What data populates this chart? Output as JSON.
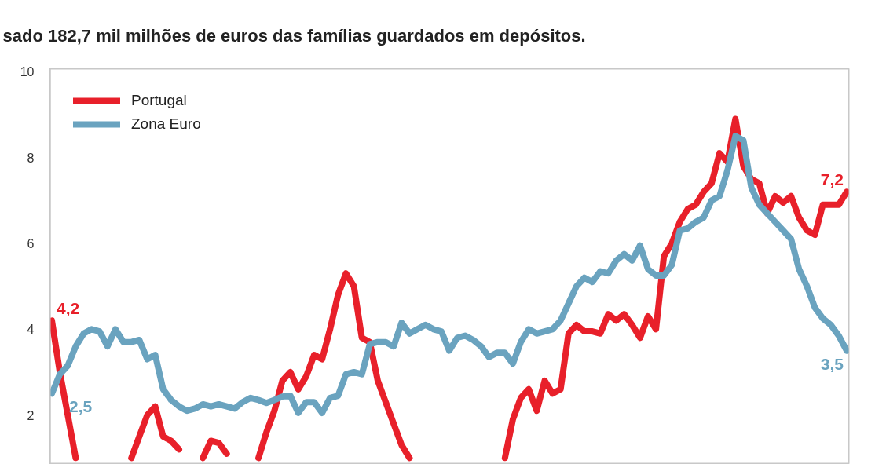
{
  "chart_data": {
    "type": "line",
    "subtitle": "sado 182,7 mil milhões de euros das famílias guardados em depósitos.",
    "categories": [
      null,
      null,
      null,
      null,
      null,
      null,
      null,
      null,
      null,
      null,
      null,
      null,
      null,
      null,
      null,
      null,
      null,
      null,
      null,
      null,
      null,
      null,
      null,
      null,
      null,
      null,
      null,
      null,
      null,
      null,
      null,
      null,
      null,
      null,
      null,
      null,
      null,
      null,
      null,
      null,
      null,
      null,
      null,
      null,
      null,
      null,
      null,
      null,
      null,
      null,
      null,
      null,
      null,
      null,
      null,
      null,
      null,
      null,
      null,
      null,
      null,
      null,
      null,
      null,
      null,
      null,
      null,
      null,
      null,
      null,
      null,
      null,
      null,
      null,
      null,
      null,
      null,
      null,
      null,
      null,
      null,
      null,
      null,
      null,
      null,
      null,
      null,
      null,
      null,
      null,
      null,
      null,
      null,
      null,
      null,
      null,
      null,
      null,
      null,
      null,
      null
    ],
    "series": [
      {
        "name": "Portugal",
        "color": "#e8202a",
        "values": [
          4.2,
          3.0,
          2.0,
          1.0,
          null,
          null,
          null,
          null,
          null,
          null,
          1.0,
          1.5,
          2.0,
          2.2,
          1.5,
          1.4,
          1.2,
          null,
          null,
          1.0,
          1.4,
          1.35,
          1.1,
          null,
          null,
          null,
          1.0,
          1.6,
          2.1,
          2.8,
          3.0,
          2.6,
          2.9,
          3.4,
          3.3,
          4.0,
          4.8,
          5.3,
          5.0,
          3.8,
          3.7,
          2.8,
          2.3,
          1.8,
          1.3,
          1.0,
          null,
          null,
          null,
          null,
          null,
          null,
          null,
          null,
          null,
          null,
          null,
          1.0,
          1.9,
          2.4,
          2.6,
          2.1,
          2.8,
          2.5,
          2.6,
          3.9,
          4.1,
          3.95,
          3.95,
          3.9,
          4.35,
          4.2,
          4.35,
          4.1,
          3.8,
          4.3,
          4.0,
          5.7,
          6.0,
          6.5,
          6.8,
          6.9,
          7.2,
          7.4,
          8.1,
          7.9,
          8.9,
          7.8,
          7.5,
          7.4,
          6.7,
          7.1,
          6.95,
          7.1,
          6.6,
          6.3,
          6.2,
          6.9,
          6.9,
          6.9,
          7.2
        ],
        "value_labels": [
          "4,2",
          null,
          null,
          null,
          null,
          null,
          null,
          null,
          null,
          null,
          null,
          null,
          null,
          null,
          null,
          null,
          null,
          null,
          null,
          null,
          null,
          null,
          null,
          null,
          null,
          null,
          null,
          null,
          null,
          null,
          null,
          null,
          null,
          null,
          null,
          null,
          null,
          null,
          null,
          null,
          null,
          null,
          null,
          null,
          null,
          null,
          null,
          null,
          null,
          null,
          null,
          null,
          null,
          null,
          null,
          null,
          null,
          null,
          null,
          null,
          null,
          null,
          null,
          null,
          null,
          null,
          null,
          null,
          null,
          null,
          null,
          null,
          null,
          null,
          null,
          null,
          null,
          null,
          null,
          null,
          null,
          null,
          null,
          null,
          null,
          null,
          null,
          null,
          null,
          null,
          null,
          null,
          null,
          null,
          null,
          null,
          null,
          null,
          null,
          null,
          "7,2"
        ]
      },
      {
        "name": "Zona Euro",
        "color": "#6aa3bf",
        "values": [
          2.5,
          2.95,
          3.15,
          3.6,
          3.9,
          4.0,
          3.95,
          3.6,
          4.0,
          3.7,
          3.7,
          3.75,
          3.3,
          3.4,
          2.6,
          2.35,
          2.2,
          2.1,
          2.15,
          2.25,
          2.2,
          2.25,
          2.2,
          2.15,
          2.3,
          2.4,
          2.35,
          2.28,
          2.35,
          2.43,
          2.45,
          2.05,
          2.3,
          2.3,
          2.05,
          2.4,
          2.45,
          2.95,
          3.0,
          2.95,
          3.65,
          3.7,
          3.7,
          3.6,
          4.15,
          3.9,
          4.0,
          4.1,
          4.0,
          3.95,
          3.5,
          3.8,
          3.85,
          3.75,
          3.6,
          3.35,
          3.45,
          3.45,
          3.2,
          3.7,
          4.0,
          3.9,
          3.95,
          4.0,
          4.2,
          4.6,
          5.0,
          5.2,
          5.1,
          5.35,
          5.3,
          5.6,
          5.75,
          5.6,
          5.95,
          5.4,
          5.25,
          5.25,
          5.5,
          6.3,
          6.35,
          6.5,
          6.6,
          7.0,
          7.1,
          7.7,
          8.5,
          8.4,
          7.3,
          6.9,
          6.7,
          6.5,
          6.3,
          6.1,
          5.4,
          5.0,
          4.5,
          4.25,
          4.1,
          3.85,
          3.5
        ],
        "value_labels": [
          "2,5",
          null,
          null,
          null,
          null,
          null,
          null,
          null,
          null,
          null,
          null,
          null,
          null,
          null,
          null,
          null,
          null,
          null,
          null,
          null,
          null,
          null,
          null,
          null,
          null,
          null,
          null,
          null,
          null,
          null,
          null,
          null,
          null,
          null,
          null,
          null,
          null,
          null,
          null,
          null,
          null,
          null,
          null,
          null,
          null,
          null,
          null,
          null,
          null,
          null,
          null,
          null,
          null,
          null,
          null,
          null,
          null,
          null,
          null,
          null,
          null,
          null,
          null,
          null,
          null,
          null,
          null,
          null,
          null,
          null,
          null,
          null,
          null,
          null,
          null,
          null,
          null,
          null,
          null,
          null,
          null,
          null,
          null,
          null,
          null,
          null,
          null,
          null,
          null,
          null,
          null,
          null,
          null,
          null,
          null,
          null,
          null,
          null,
          null,
          null,
          "3,5"
        ]
      }
    ],
    "ylim": [
      0.85,
      10.07
    ],
    "yticks": [
      2,
      4,
      6,
      8,
      10
    ],
    "grid": false,
    "legend": "top left",
    "tick_labels": "y",
    "marker": "none",
    "line_style": "solid"
  }
}
